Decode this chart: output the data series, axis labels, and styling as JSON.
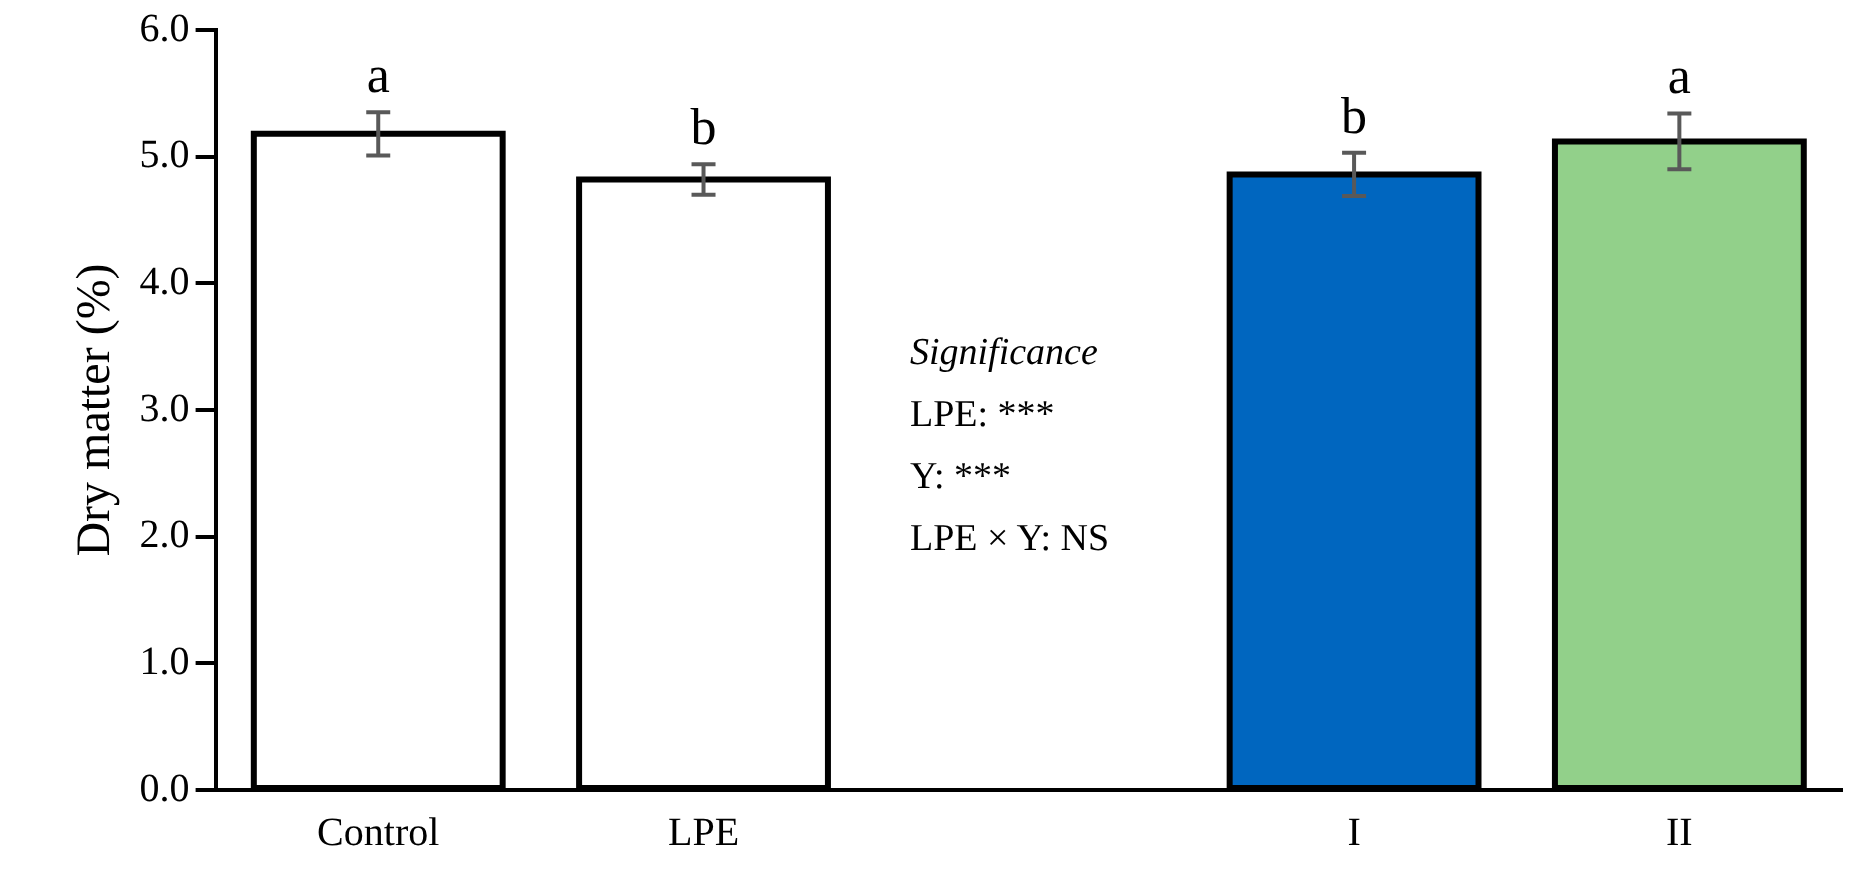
{
  "chart_data": {
    "type": "bar",
    "ylabel": "Dry matter (%)",
    "categories": [
      "Control",
      "LPE",
      null,
      "I",
      "II"
    ],
    "values": [
      5.18,
      4.82,
      null,
      4.86,
      5.12
    ],
    "colors": [
      "#ffffff",
      "#ffffff",
      null,
      "#0066bf",
      "#92d08a"
    ],
    "errors": [
      0.17,
      0.12,
      null,
      0.17,
      0.22
    ],
    "value_labels": [
      "a",
      "b",
      null,
      "b",
      "a"
    ],
    "ylim": [
      0,
      6
    ],
    "yticks": [
      {
        "value": 0,
        "label": "0.0"
      },
      {
        "value": 1,
        "label": "1.0"
      },
      {
        "value": 2,
        "label": "2.0"
      },
      {
        "value": 3,
        "label": "3.0"
      },
      {
        "value": 4,
        "label": "4.0"
      },
      {
        "value": 5,
        "label": "5.0"
      },
      {
        "value": 6,
        "label": "6.0"
      }
    ],
    "annotations": [
      "Significance",
      "LPE: ***",
      "Y: ***",
      "LPE × Y: NS"
    ],
    "grid": false,
    "legend": false
  }
}
